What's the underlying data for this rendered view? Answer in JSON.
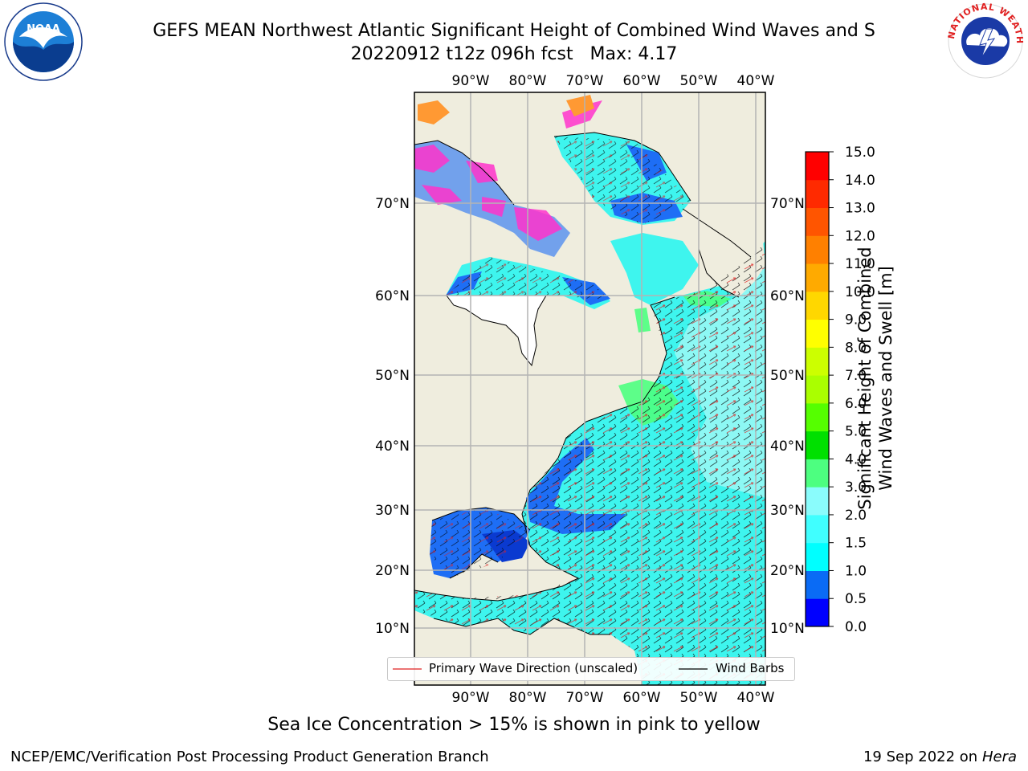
{
  "title": {
    "line1": "GEFS MEAN Northwest Atlantic Significant Height of Combined Wind Waves and S",
    "line2": "20220912 t12z 096h fcst   Max: 4.17"
  },
  "map": {
    "lon_labels": [
      "90°W",
      "80°W",
      "70°W",
      "60°W",
      "50°W",
      "40°W"
    ],
    "lat_labels": [
      "70°N",
      "60°N",
      "50°N",
      "40°N",
      "30°N",
      "20°N",
      "10°N"
    ],
    "colors": {
      "land": "#efedde",
      "ocean_deep": "#0a5cf0",
      "ocean_cyan": "#3ef5ee",
      "ocean_light": "#a8f8f5",
      "grid": "#b4b4b4",
      "wave_arrow": "#e02020",
      "wind_barb": "#000000",
      "ice": "#ff33cc"
    }
  },
  "colorbar": {
    "label": "Significant Height of Combined Wind Waves and Swell [m]",
    "ticks": [
      "0.0",
      "0.5",
      "1.0",
      "1.5",
      "2.0",
      "3.0",
      "4.0",
      "5.0",
      "6.0",
      "7.0",
      "8.0",
      "9.0",
      "10.0",
      "11.0",
      "12.0",
      "13.0",
      "14.0",
      "15.0"
    ],
    "colors": [
      "#0000ff",
      "#0a6bf5",
      "#00ffff",
      "#40ffff",
      "#8afcfc",
      "#4dff80",
      "#00e000",
      "#55ff00",
      "#aaff00",
      "#ccff00",
      "#ffff00",
      "#ffd700",
      "#ffaa00",
      "#ff8000",
      "#ff5500",
      "#ff2a00",
      "#ff0000"
    ]
  },
  "legend": {
    "wave_label": "Primary Wave Direction (unscaled)",
    "wind_label": "Wind Barbs"
  },
  "footnote": "Sea Ice Concentration > 15% is shown in pink to yellow",
  "credit_left": "NCEP/EMC/Verification Post Processing Product Generation Branch",
  "credit_date": "19 Sep 2022 on",
  "credit_machine": "Hera",
  "logos": {
    "noaa": "NOAA",
    "nws": "NATIONAL WEATHER SERVICE"
  }
}
